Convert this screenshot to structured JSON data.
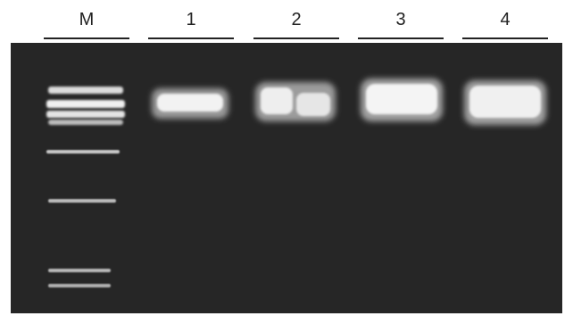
{
  "lanes": [
    {
      "label": "M"
    },
    {
      "label": "1"
    },
    {
      "label": "2"
    },
    {
      "label": "3"
    },
    {
      "label": "4"
    }
  ],
  "colors": {
    "gel_background": "#262626",
    "band_core": "#f2f2f2",
    "band_glow": "#cfcfcf",
    "marker_band": "#dcdcdc",
    "label_text": "#222222"
  }
}
